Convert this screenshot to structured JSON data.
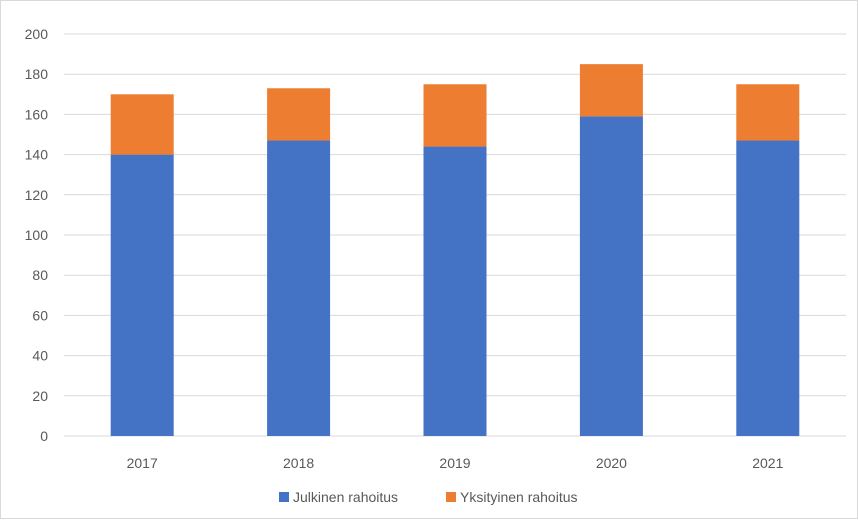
{
  "chart_data": {
    "type": "bar",
    "stacked": true,
    "categories": [
      "2017",
      "2018",
      "2019",
      "2020",
      "2021"
    ],
    "series": [
      {
        "name": "Julkinen rahoitus",
        "color": "#4472c4",
        "values": [
          140,
          147,
          144,
          159,
          147
        ]
      },
      {
        "name": "Yksityinen rahoitus",
        "color": "#ed7d31",
        "values": [
          30,
          26,
          31,
          26,
          28
        ]
      }
    ],
    "title": "",
    "xlabel": "",
    "ylabel": "",
    "ylim": [
      0,
      200
    ],
    "yticks": [
      0,
      20,
      40,
      60,
      80,
      100,
      120,
      140,
      160,
      180,
      200
    ],
    "grid": true,
    "legend_position": "bottom"
  }
}
